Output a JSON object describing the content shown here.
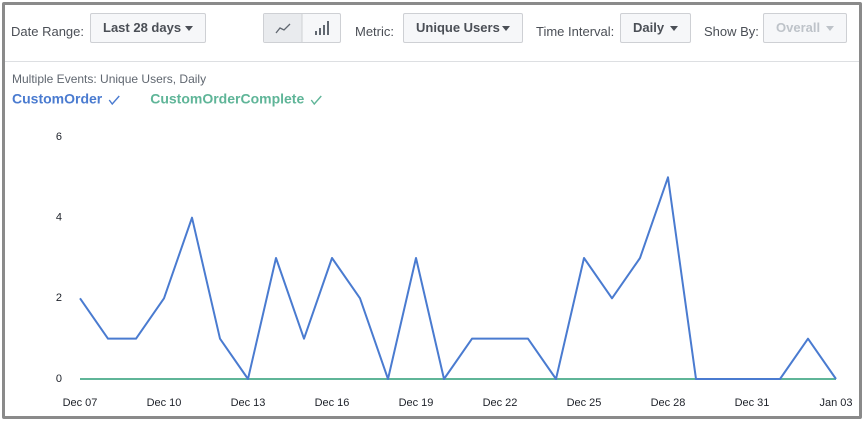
{
  "toolbar": {
    "date_range_label": "Date Range:",
    "date_range_value": "Last 28 days",
    "metric_label": "Metric:",
    "metric_value": "Unique Users",
    "interval_label": "Time Interval:",
    "interval_value": "Daily",
    "show_by_label": "Show By:",
    "show_by_value": "Overall"
  },
  "chart_data": {
    "type": "line",
    "subtitle": "Multiple Events: Unique Users, Daily",
    "categories": [
      "Dec 07",
      null,
      null,
      "Dec 10",
      null,
      null,
      "Dec 13",
      null,
      null,
      "Dec 16",
      null,
      null,
      "Dec 19",
      null,
      null,
      "Dec 22",
      null,
      null,
      "Dec 25",
      null,
      null,
      "Dec 28",
      null,
      null,
      "Dec 31",
      null,
      null,
      "Jan 03"
    ],
    "series": [
      {
        "name": "CustomOrder",
        "color": "#4a7bd0",
        "values": [
          2,
          1,
          1,
          2,
          4,
          1,
          0,
          3,
          1,
          3,
          2,
          0,
          3,
          0,
          1,
          1,
          1,
          0,
          3,
          2,
          3,
          5,
          0,
          0,
          0,
          0,
          1,
          0
        ]
      },
      {
        "name": "CustomOrderComplete",
        "color": "#5fb598",
        "values": [
          0,
          0,
          0,
          0,
          0,
          0,
          0,
          0,
          0,
          0,
          0,
          0,
          0,
          0,
          0,
          0,
          0,
          0,
          0,
          0,
          0,
          0,
          0,
          0,
          0,
          0,
          0,
          0
        ]
      }
    ],
    "ylim": [
      0,
      6
    ],
    "yticks": [
      0,
      2,
      4,
      6
    ],
    "grid": false
  }
}
